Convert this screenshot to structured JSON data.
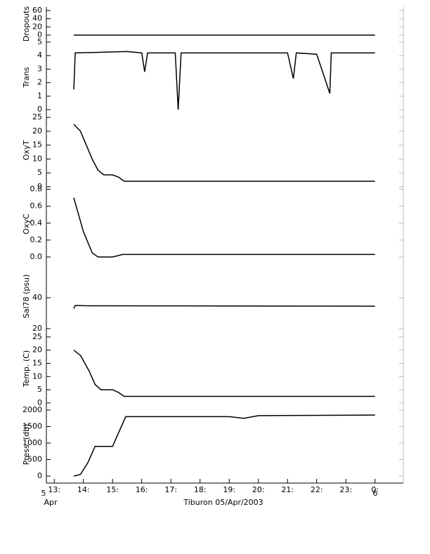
{
  "chart_data": [
    {
      "type": "line",
      "ylabel": "Dropouts",
      "ylim": [
        -13.7,
        68.6
      ],
      "yticks": [
        0,
        20,
        40,
        60
      ],
      "xlim": [
        12.73,
        24.97
      ],
      "x": [
        13.67,
        15,
        17,
        19,
        21,
        23,
        24
      ],
      "color": "#000000",
      "values": [
        0,
        0,
        0,
        0,
        0,
        0,
        0
      ]
    },
    {
      "type": "line",
      "ylabel": "Trans",
      "ylim": [
        -0.3,
        5.1
      ],
      "yticks": [
        0,
        1,
        2,
        3,
        4,
        5
      ],
      "xlim": [
        12.73,
        24.97
      ],
      "x": [
        13.67,
        13.72,
        15.5,
        16,
        16.1,
        16.2,
        17.15,
        17.25,
        17.35,
        21,
        21.2,
        21.3,
        22,
        22.45,
        22.5,
        24
      ],
      "color": "#000000",
      "values": [
        1.5,
        4.2,
        4.3,
        4.2,
        2.8,
        4.2,
        4.2,
        0,
        4.2,
        4.2,
        2.3,
        4.2,
        4.1,
        1.2,
        4.2,
        4.2
      ]
    },
    {
      "type": "line",
      "ylabel": "OxyT",
      "ylim": [
        0,
        26.3
      ],
      "yticks": [
        0,
        5,
        10,
        15,
        20,
        25
      ],
      "xlim": [
        12.73,
        24.97
      ],
      "x": [
        13.67,
        13.9,
        14.1,
        14.3,
        14.5,
        14.7,
        15.0,
        15.2,
        15.4,
        24
      ],
      "color": "#000000",
      "values": [
        22.5,
        20,
        15,
        10,
        6,
        4.3,
        4.3,
        3.5,
        2,
        2
      ]
    },
    {
      "type": "line",
      "ylabel": "OxyC",
      "ylim": [
        -0.05,
        0.83
      ],
      "yticks": [
        {
          "value": 0,
          "label": "0.0"
        },
        0.2,
        0.4,
        0.6,
        0.8
      ],
      "xlim": [
        12.73,
        24.97
      ],
      "x": [
        13.67,
        14.0,
        14.3,
        14.5,
        15.0,
        15.35,
        24
      ],
      "color": "#000000",
      "values": [
        0.7,
        0.3,
        0.05,
        0,
        0,
        0.03,
        0.03
      ]
    },
    {
      "type": "line",
      "ylabel": "Sal78 (psu)",
      "ylim": [
        18.2,
        63.6
      ],
      "yticks": [
        20,
        40
      ],
      "xlim": [
        12.73,
        24.97
      ],
      "x": [
        13.67,
        13.72,
        14.0,
        24
      ],
      "color": "#000000",
      "values": [
        33,
        35,
        34.8,
        34.5
      ]
    },
    {
      "type": "line",
      "ylabel": "Temp. (C)",
      "ylim": [
        -1.1,
        27.1
      ],
      "yticks": [
        0,
        5,
        10,
        15,
        20,
        25
      ],
      "xlim": [
        12.73,
        24.97
      ],
      "x": [
        13.67,
        13.9,
        14.2,
        14.4,
        14.6,
        15.0,
        15.2,
        15.4,
        24
      ],
      "color": "#000000",
      "values": [
        20,
        18,
        12,
        7,
        5,
        5,
        4,
        2.5,
        2.5
      ]
    },
    {
      "type": "line",
      "ylabel": "Press. (db)",
      "ylim": [
        -213,
        2128
      ],
      "yticks": [
        0,
        500,
        1000,
        1500,
        2000
      ],
      "xlim": [
        12.73,
        24.97
      ],
      "x": [
        13.67,
        13.9,
        14.15,
        14.4,
        15.0,
        15.45,
        19,
        19.5,
        20,
        24
      ],
      "color": "#000000",
      "values": [
        0,
        50,
        400,
        900,
        900,
        1800,
        1800,
        1750,
        1830,
        1850
      ],
      "xticks": [
        {
          "value": 13,
          "label": "13:"
        },
        {
          "value": 14,
          "label": "14:"
        },
        {
          "value": 15,
          "label": "15:"
        },
        {
          "value": 16,
          "label": "16:"
        },
        {
          "value": 17,
          "label": "17:"
        },
        {
          "value": 18,
          "label": "18:"
        },
        {
          "value": 19,
          "label": "19:"
        },
        {
          "value": 20,
          "label": "20:"
        },
        {
          "value": 21,
          "label": "21:"
        },
        {
          "value": 22,
          "label": "22:"
        },
        {
          "value": 23,
          "label": "23:"
        },
        {
          "value": 24,
          "label": "0:"
        }
      ],
      "date_labels": [
        "5",
        "Apr",
        "6"
      ],
      "xlabel": "Tiburon 05/Apr/2003"
    }
  ]
}
